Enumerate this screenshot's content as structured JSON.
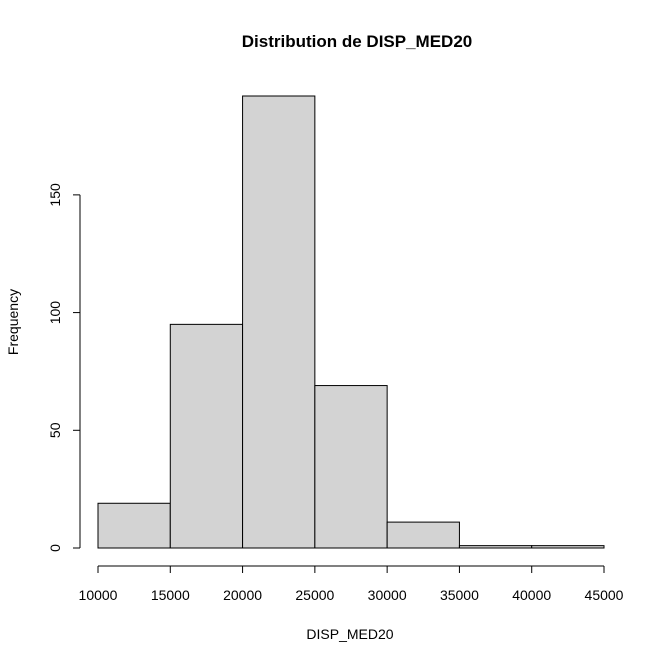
{
  "chart_data": {
    "type": "bar",
    "title": "Distribution de DISP_MED20",
    "xlabel": "DISP_MED20",
    "ylabel": "Frequency",
    "bins": [
      {
        "from": 10000,
        "to": 15000,
        "count": 19
      },
      {
        "from": 15000,
        "to": 20000,
        "count": 95
      },
      {
        "from": 20000,
        "to": 25000,
        "count": 192
      },
      {
        "from": 25000,
        "to": 30000,
        "count": 69
      },
      {
        "from": 30000,
        "to": 35000,
        "count": 11
      },
      {
        "from": 35000,
        "to": 40000,
        "count": 1
      },
      {
        "from": 40000,
        "to": 45000,
        "count": 1
      }
    ],
    "xticks": [
      10000,
      15000,
      20000,
      25000,
      30000,
      35000,
      40000,
      45000
    ],
    "yticks": [
      0,
      50,
      100,
      150
    ],
    "xlim": [
      10000,
      45000
    ],
    "ylim": [
      0,
      192
    ],
    "bar_fill": "#d3d3d3",
    "grid": false
  }
}
